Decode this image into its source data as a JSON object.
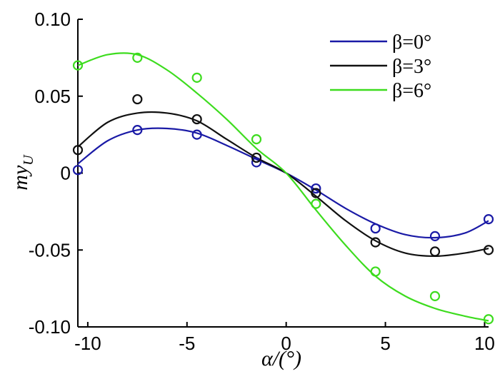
{
  "chart_data": {
    "type": "scatter",
    "title": "",
    "xlabel": "α/(°)",
    "ylabel_main": "my",
    "ylabel_sub": "U",
    "xlim": [
      -10.5,
      10.2
    ],
    "ylim": [
      -0.1,
      0.1
    ],
    "x_ticks": [
      -10,
      -5,
      0,
      5,
      10
    ],
    "x_tick_labels": [
      "-10",
      "-5",
      "0",
      "5",
      "10"
    ],
    "y_ticks": [
      -0.1,
      -0.05,
      0,
      0.05,
      0.1
    ],
    "y_tick_labels": [
      "-0.10",
      "-0.05",
      "0",
      "0.05",
      "0.10"
    ],
    "grid": false,
    "legend_position": "top-right",
    "series": [
      {
        "name": "β=0°",
        "color": "#1a1aa6",
        "x": [
          -10.5,
          -7.5,
          -4.5,
          -1.5,
          1.5,
          4.5,
          7.5,
          10.2
        ],
        "y": [
          0.002,
          0.028,
          0.025,
          0.007,
          -0.01,
          -0.036,
          -0.041,
          -0.03
        ],
        "fit_x": [
          -10.5,
          -9.0,
          -7.5,
          -6.0,
          -4.5,
          -3.0,
          -1.5,
          0.0,
          1.5,
          3.0,
          4.5,
          6.0,
          7.5,
          9.0,
          10.2
        ],
        "fit_y": [
          0.006,
          0.021,
          0.028,
          0.029,
          0.026,
          0.018,
          0.009,
          0.0,
          -0.011,
          -0.023,
          -0.033,
          -0.04,
          -0.042,
          -0.039,
          -0.031
        ]
      },
      {
        "name": "β=3°",
        "color": "#111111",
        "x": [
          -10.5,
          -7.5,
          -4.5,
          -1.5,
          1.5,
          4.5,
          7.5,
          10.2
        ],
        "y": [
          0.015,
          0.048,
          0.035,
          0.01,
          -0.013,
          -0.045,
          -0.051,
          -0.05
        ],
        "fit_x": [
          -10.5,
          -9.0,
          -7.5,
          -6.0,
          -4.5,
          -3.0,
          -1.5,
          0.0,
          1.5,
          3.0,
          4.5,
          6.0,
          7.5,
          9.0,
          10.2
        ],
        "fit_y": [
          0.017,
          0.033,
          0.039,
          0.039,
          0.034,
          0.022,
          0.01,
          0.0,
          -0.015,
          -0.031,
          -0.044,
          -0.052,
          -0.054,
          -0.052,
          -0.049
        ]
      },
      {
        "name": "β=6°",
        "color": "#3ddc1e",
        "x": [
          -10.5,
          -7.5,
          -4.5,
          -1.5,
          1.5,
          4.5,
          7.5,
          10.2
        ],
        "y": [
          0.07,
          0.075,
          0.062,
          0.022,
          -0.02,
          -0.064,
          -0.08,
          -0.095
        ],
        "fit_x": [
          -10.5,
          -9.0,
          -7.5,
          -6.0,
          -4.5,
          -3.0,
          -1.5,
          0.0,
          1.5,
          3.0,
          4.5,
          6.0,
          7.5,
          9.0,
          10.2
        ],
        "fit_y": [
          0.07,
          0.077,
          0.077,
          0.067,
          0.052,
          0.035,
          0.016,
          0.0,
          -0.024,
          -0.047,
          -0.067,
          -0.08,
          -0.088,
          -0.093,
          -0.096
        ]
      }
    ]
  }
}
